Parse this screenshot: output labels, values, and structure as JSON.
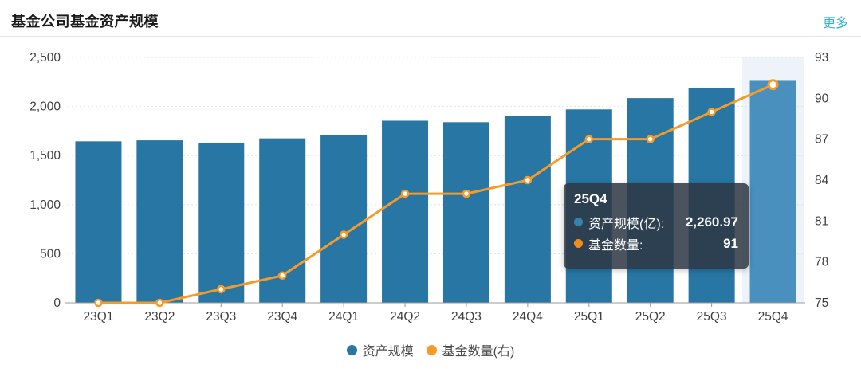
{
  "header": {
    "title": "基金公司基金资产规模",
    "more_link": "更多"
  },
  "legend": [
    {
      "label": "资产规模",
      "color_key": "bar"
    },
    {
      "label": "基金数量(右)",
      "color_key": "line"
    }
  ],
  "tooltip": {
    "title": "25Q4",
    "rows": [
      {
        "label": "资产规模(亿):",
        "value": "2,260.97",
        "color_key": "tooltip_dot_blue"
      },
      {
        "label": "基金数量:",
        "value": "91",
        "color_key": "tooltip_dot_orange"
      }
    ]
  },
  "colors": {
    "bar": "#2776a3",
    "bar_highlight": "#4a90be",
    "band": "#eef2f9",
    "line": "#f89a28",
    "marker_fill": "#ffffff",
    "grid": "#dde2ee",
    "axis_line": "#999999",
    "axis_text": "#404040",
    "tooltip_dot_blue": "#3584ad",
    "tooltip_dot_orange": "#f28b1e",
    "more_link": "#2cb3d6"
  },
  "chart_data": {
    "type": "bar+line",
    "categories": [
      "23Q1",
      "23Q2",
      "23Q3",
      "23Q4",
      "24Q1",
      "24Q2",
      "24Q3",
      "24Q4",
      "25Q1",
      "25Q2",
      "25Q3",
      "25Q4"
    ],
    "series": [
      {
        "name": "资产规模",
        "type": "bar",
        "y_axis": "left",
        "unit": "亿",
        "values": [
          1645,
          1655,
          1630,
          1675,
          1710,
          1855,
          1840,
          1900,
          1970,
          2085,
          2185,
          2260.97
        ],
        "highlighted_category": "25Q4"
      },
      {
        "name": "基金数量(右)",
        "type": "line",
        "y_axis": "right",
        "values": [
          75,
          75,
          76,
          77,
          80,
          83,
          83,
          84,
          87,
          87,
          89,
          91
        ]
      }
    ],
    "left_axis": {
      "min": 0,
      "max": 2500,
      "step": 500,
      "labels": [
        "0",
        "500",
        "1,000",
        "1,500",
        "2,000",
        "2,500"
      ]
    },
    "right_axis": {
      "min": 75,
      "max": 93,
      "step": 3,
      "labels": [
        "75",
        "78",
        "81",
        "84",
        "87",
        "90",
        "93"
      ]
    },
    "grid": "dotted horizontal",
    "legend_position": "bottom-center",
    "tooltip_category": "25Q4"
  }
}
